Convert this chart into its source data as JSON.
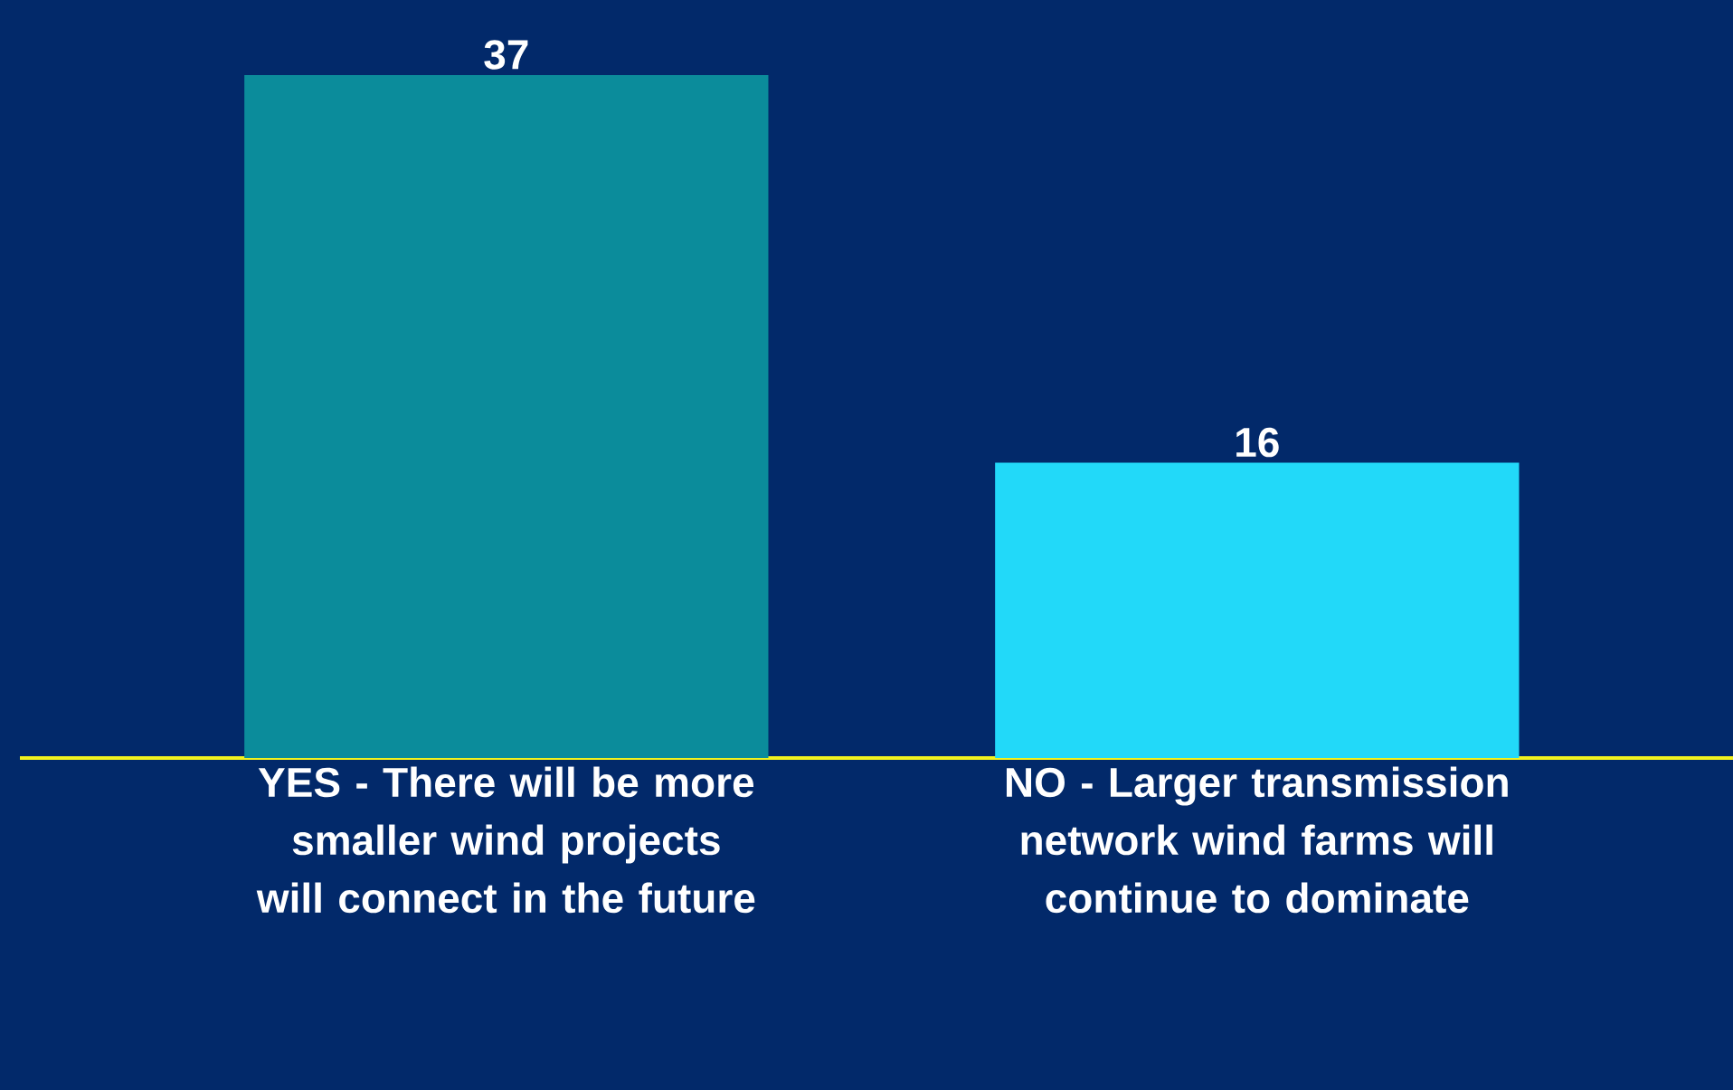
{
  "chart_data": {
    "type": "bar",
    "categories": [
      "YES - There will be more smaller wind projects will connect in the future",
      "NO - Larger transmission network wind farms will continue to dominate"
    ],
    "values": [
      37,
      16
    ],
    "colors": [
      "#0b8c9b",
      "#22d9f9"
    ],
    "data_labels": true
  }
}
